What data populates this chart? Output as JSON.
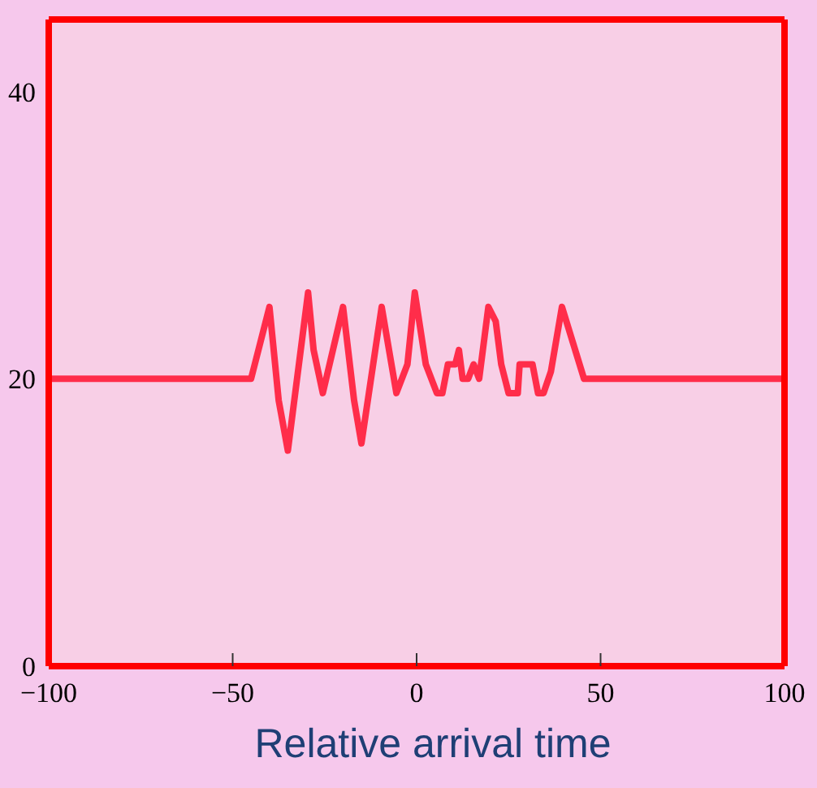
{
  "chart_data": {
    "type": "line",
    "xlabel": "Relative arrival time",
    "x": [
      -100,
      -45,
      -42.5,
      -40,
      -37.5,
      -35,
      -29.5,
      -28,
      -25.5,
      -20,
      -17,
      -15,
      -9.5,
      -7.5,
      -5.5,
      -2.5,
      -0.5,
      2.5,
      5.5,
      7,
      8.5,
      10.5,
      11.5,
      12.5,
      14,
      15.5,
      17,
      18.5,
      19.5,
      21.5,
      23,
      25,
      27.5,
      28,
      31.5,
      33,
      34.5,
      36.5,
      39.5,
      42.5,
      45.5,
      100
    ],
    "series": [
      {
        "color": "#ff2d4a",
        "values": [
          20,
          20,
          22.5,
          25,
          18.5,
          15,
          26,
          22,
          19,
          25,
          18.5,
          15.5,
          25,
          22,
          19,
          21,
          26,
          21,
          19,
          19,
          21,
          21,
          22,
          20,
          20,
          21,
          20,
          23,
          25,
          24,
          21,
          19,
          19,
          21,
          21,
          19,
          19,
          20.5,
          25,
          22.5,
          20,
          20
        ]
      }
    ],
    "xlim": [
      -100,
      100
    ],
    "xticks": [
      {
        "value": -100,
        "label": "−100"
      },
      {
        "value": -50,
        "label": "−50"
      },
      0,
      50,
      100
    ],
    "ylim": [
      0,
      45
    ],
    "yticks": [
      0,
      20,
      40
    ],
    "grid": false,
    "marker": "none",
    "line_style": "solid"
  }
}
